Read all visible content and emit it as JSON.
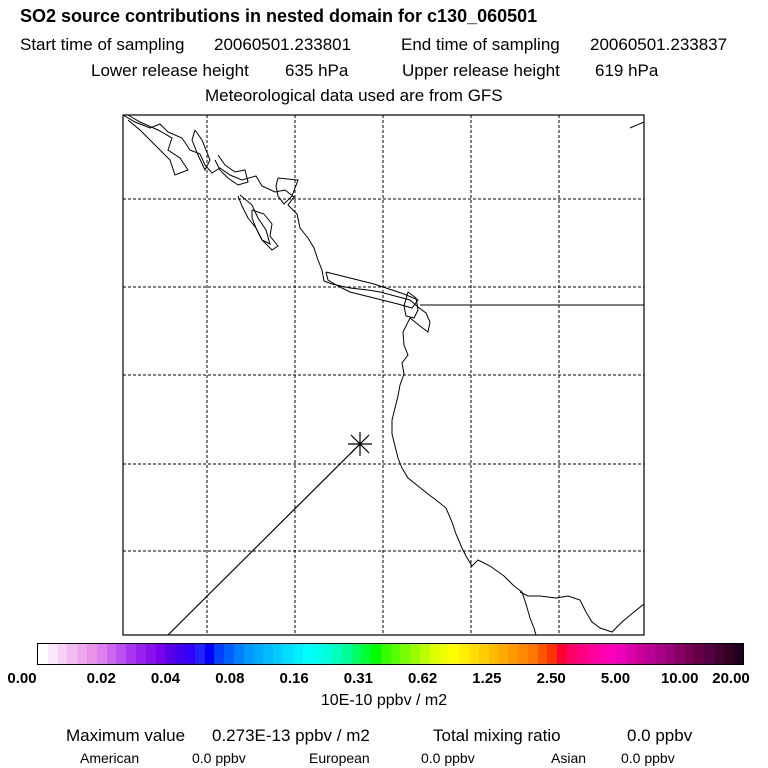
{
  "header": {
    "title": "SO2 source contributions in nested domain for c130_060501",
    "start_label": "Start time of sampling",
    "start_value": "20060501.233801",
    "end_label": "End time of sampling",
    "end_value": "20060501.233837",
    "lower_label": "Lower release height",
    "lower_value": "635 hPa",
    "upper_label": "Upper release height",
    "upper_value": "619 hPa",
    "met_note": "Meteorological data used are from GFS"
  },
  "colorbar": {
    "tick_labels": [
      "0.00",
      "0.02",
      "0.04",
      "0.08",
      "0.16",
      "0.31",
      "0.62",
      "1.25",
      "2.50",
      "5.00",
      "10.00",
      "20.00"
    ],
    "colors": [
      "#ffffff",
      "#fbe6fb",
      "#f7d2f7",
      "#f2bdf2",
      "#eea8ee",
      "#e893e8",
      "#dd80f0",
      "#cc66f0",
      "#bb4ff0",
      "#aa33f0",
      "#9922ee",
      "#8811ee",
      "#7a00ee",
      "#5a00e8",
      "#4400ee",
      "#3300ff",
      "#2222ff",
      "#0000ff",
      "#0040ff",
      "#0060ff",
      "#0080ff",
      "#0099ff",
      "#00aaff",
      "#00bbff",
      "#00ccff",
      "#00ddff",
      "#00eeff",
      "#00ffff",
      "#00ffee",
      "#00ffdd",
      "#00ffbb",
      "#00ff99",
      "#00ff66",
      "#00ff33",
      "#00ff00",
      "#33ff00",
      "#55ff00",
      "#77ff00",
      "#99ff00",
      "#bbff00",
      "#ddff00",
      "#eeff00",
      "#ffff00",
      "#ffee00",
      "#ffdd00",
      "#ffcc00",
      "#ffbb00",
      "#ffaa00",
      "#ff9900",
      "#ff8800",
      "#ff7700",
      "#ff5500",
      "#ff3300",
      "#ff0033",
      "#ff0066",
      "#ff0080",
      "#ff0099",
      "#ff00aa",
      "#ff00bb",
      "#ee00bb",
      "#dd00aa",
      "#cc0099",
      "#bb0099",
      "#aa0088",
      "#990077",
      "#880066",
      "#770055",
      "#660044",
      "#550044",
      "#440033",
      "#330022",
      "#220022"
    ],
    "unit": "10E-10 ppbv / m2"
  },
  "stats": {
    "max_label": "Maximum value",
    "max_value": "0.273E-13 ppbv / m2",
    "total_label": "Total mixing ratio",
    "total_value": "0.0 ppbv",
    "american_label": "American",
    "american_value": "0.0 ppbv",
    "european_label": "European",
    "european_value": "0.0 ppbv",
    "asian_label": "Asian",
    "asian_value": "0.0 ppbv"
  }
}
